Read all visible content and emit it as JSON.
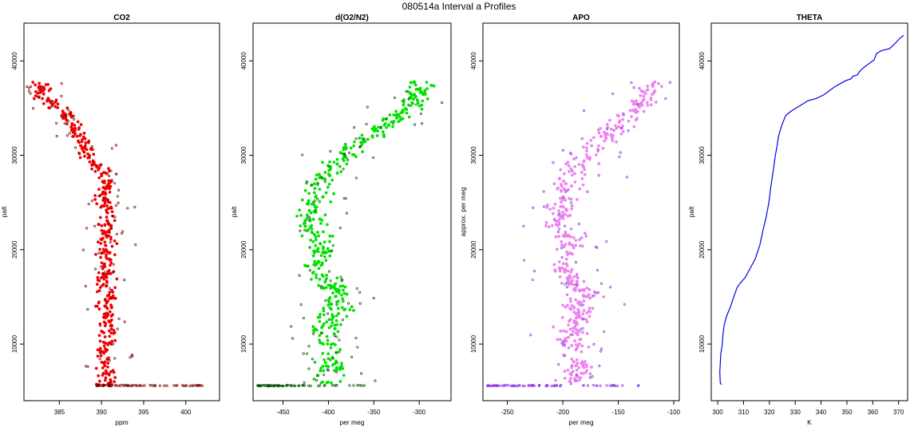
{
  "figure": {
    "supertitle": "080514a   Interval a Profiles"
  },
  "chart_data": [
    {
      "type": "scatter",
      "title": "CO2",
      "xlabel": "ppm",
      "ylabel": "palt",
      "xlim": [
        380.8,
        404.0
      ],
      "ylim": [
        4000,
        44000
      ],
      "xticks": [
        385,
        390,
        395,
        400
      ],
      "yticks": [
        10000,
        20000,
        30000,
        40000
      ],
      "color": "#ee0000",
      "marker_edge": "#7a0000",
      "profile": [
        [
          382.3,
          37800
        ],
        [
          382.9,
          37500
        ],
        [
          382.6,
          36700
        ],
        [
          383.4,
          36000
        ],
        [
          384.6,
          35300
        ],
        [
          385.8,
          34500
        ],
        [
          386.5,
          33700
        ],
        [
          387.0,
          32800
        ],
        [
          387.8,
          31500
        ],
        [
          388.2,
          30800
        ],
        [
          389.0,
          29500
        ],
        [
          389.7,
          28700
        ],
        [
          390.3,
          27800
        ],
        [
          390.5,
          26800
        ],
        [
          390.4,
          25500
        ],
        [
          390.8,
          24000
        ],
        [
          390.5,
          22500
        ],
        [
          390.6,
          21000
        ],
        [
          390.4,
          19500
        ],
        [
          390.6,
          18000
        ],
        [
          390.3,
          16500
        ],
        [
          390.5,
          15000
        ],
        [
          390.6,
          13500
        ],
        [
          390.8,
          12000
        ],
        [
          390.5,
          10500
        ],
        [
          390.3,
          9000
        ],
        [
          390.6,
          7500
        ],
        [
          390.8,
          6500
        ],
        [
          390.5,
          5800
        ],
        [
          390.7,
          5600
        ]
      ],
      "surface_alt": 5600,
      "surface_range": [
        389.4,
        402.6
      ],
      "scatter_spread": 1.2
    },
    {
      "type": "scatter",
      "title": "d(O2/N2)",
      "xlabel": "per meg",
      "ylabel": "palt",
      "xlim": [
        -483,
        -265
      ],
      "ylim": [
        4000,
        44000
      ],
      "xticks": [
        -450,
        -400,
        -350,
        -300
      ],
      "yticks": [
        10000,
        20000,
        30000,
        40000
      ],
      "color": "#00e000",
      "marker_edge": "#005000",
      "profile": [
        [
          -298,
          37800
        ],
        [
          -300,
          37000
        ],
        [
          -302,
          36300
        ],
        [
          -305,
          35500
        ],
        [
          -318,
          34500
        ],
        [
          -330,
          33500
        ],
        [
          -345,
          32500
        ],
        [
          -360,
          31500
        ],
        [
          -375,
          30500
        ],
        [
          -385,
          29500
        ],
        [
          -395,
          28500
        ],
        [
          -405,
          27500
        ],
        [
          -412,
          26500
        ],
        [
          -410,
          25500
        ],
        [
          -420,
          24500
        ],
        [
          -418,
          23500
        ],
        [
          -422,
          22500
        ],
        [
          -410,
          21500
        ],
        [
          -405,
          20500
        ],
        [
          -408,
          19500
        ],
        [
          -415,
          18500
        ],
        [
          -410,
          17500
        ],
        [
          -400,
          16500
        ],
        [
          -385,
          15500
        ],
        [
          -395,
          14500
        ],
        [
          -390,
          13500
        ],
        [
          -400,
          12500
        ],
        [
          -405,
          11500
        ],
        [
          -410,
          10500
        ],
        [
          -390,
          9500
        ],
        [
          -400,
          8500
        ],
        [
          -395,
          7500
        ],
        [
          -405,
          6500
        ],
        [
          -400,
          5800
        ]
      ],
      "surface_alt": 5600,
      "surface_range": [
        -478,
        -360
      ],
      "scatter_spread": 18
    },
    {
      "type": "scatter",
      "title": "APO",
      "xlabel": "per meg",
      "ylabel": "approx. per meg",
      "xlim": [
        -272,
        -95
      ],
      "ylim": [
        4000,
        44000
      ],
      "xticks": [
        -250,
        -200,
        -150,
        -100
      ],
      "yticks": [
        10000,
        20000,
        30000,
        40000
      ],
      "color": "#ee82ee",
      "marker_edge": "#8a2be2",
      "profile": [
        [
          -120,
          37800
        ],
        [
          -122,
          37000
        ],
        [
          -124,
          36300
        ],
        [
          -128,
          35500
        ],
        [
          -138,
          34500
        ],
        [
          -148,
          33500
        ],
        [
          -155,
          32500
        ],
        [
          -165,
          31500
        ],
        [
          -175,
          30500
        ],
        [
          -182,
          29500
        ],
        [
          -190,
          28500
        ],
        [
          -195,
          27500
        ],
        [
          -198,
          26500
        ],
        [
          -196,
          25500
        ],
        [
          -202,
          24500
        ],
        [
          -200,
          23500
        ],
        [
          -204,
          22500
        ],
        [
          -196,
          21500
        ],
        [
          -193,
          20500
        ],
        [
          -195,
          19500
        ],
        [
          -200,
          18500
        ],
        [
          -197,
          17500
        ],
        [
          -190,
          16500
        ],
        [
          -178,
          15500
        ],
        [
          -186,
          14500
        ],
        [
          -182,
          13500
        ],
        [
          -190,
          12500
        ],
        [
          -193,
          11500
        ],
        [
          -196,
          10500
        ],
        [
          -182,
          9500
        ],
        [
          -190,
          8500
        ],
        [
          -186,
          7500
        ],
        [
          -193,
          6500
        ],
        [
          -190,
          5800
        ]
      ],
      "surface_alt": 5600,
      "surface_range": [
        -268,
        -130
      ],
      "scatter_spread": 14
    },
    {
      "type": "line",
      "title": "THETA",
      "xlabel": "K",
      "ylabel": "palt",
      "xlim": [
        297.5,
        373.5
      ],
      "ylim": [
        4000,
        44000
      ],
      "xticks": [
        300,
        310,
        320,
        330,
        340,
        350,
        360,
        370
      ],
      "yticks": [
        10000,
        20000,
        30000,
        40000
      ],
      "color": "#0000ee",
      "points": [
        [
          301.5,
          5700
        ],
        [
          301.0,
          5900
        ],
        [
          300.8,
          7000
        ],
        [
          301.2,
          9000
        ],
        [
          301.8,
          10000
        ],
        [
          302.0,
          11000
        ],
        [
          302.5,
          12000
        ],
        [
          303.5,
          13000
        ],
        [
          305.0,
          14000
        ],
        [
          306.2,
          15000
        ],
        [
          307.5,
          16000
        ],
        [
          308.8,
          16500
        ],
        [
          310.5,
          17000
        ],
        [
          312.5,
          18000
        ],
        [
          314.5,
          19000
        ],
        [
          316.3,
          20500
        ],
        [
          317.5,
          22000
        ],
        [
          318.8,
          23500
        ],
        [
          319.8,
          25000
        ],
        [
          320.5,
          26500
        ],
        [
          321.0,
          27500
        ],
        [
          321.8,
          29000
        ],
        [
          322.3,
          30000
        ],
        [
          323.0,
          31000
        ],
        [
          323.5,
          32000
        ],
        [
          324.8,
          33200
        ],
        [
          326.3,
          34200
        ],
        [
          328.5,
          34700
        ],
        [
          331.5,
          35200
        ],
        [
          335.0,
          35800
        ],
        [
          338.0,
          36000
        ],
        [
          341.0,
          36400
        ],
        [
          343.0,
          36800
        ],
        [
          345.0,
          37200
        ],
        [
          347.5,
          37600
        ],
        [
          349.5,
          37900
        ],
        [
          351.5,
          38100
        ],
        [
          352.5,
          38400
        ],
        [
          354.0,
          38500
        ],
        [
          355.0,
          38900
        ],
        [
          356.5,
          39300
        ],
        [
          358.5,
          39700
        ],
        [
          360.5,
          40100
        ],
        [
          361.5,
          40800
        ],
        [
          363.5,
          41100
        ],
        [
          366.5,
          41300
        ],
        [
          368.5,
          41800
        ],
        [
          370.5,
          42400
        ],
        [
          372.0,
          42700
        ]
      ]
    }
  ]
}
